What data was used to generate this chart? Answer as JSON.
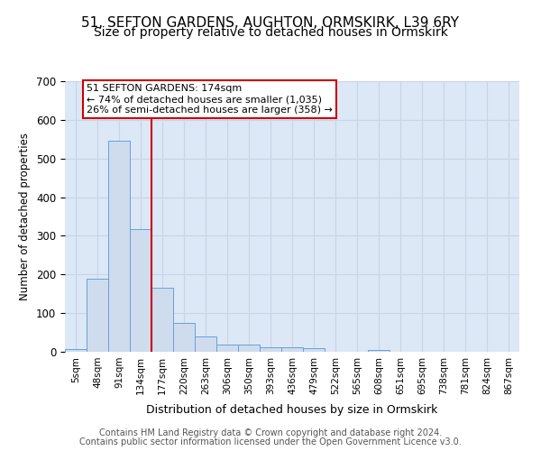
{
  "title1": "51, SEFTON GARDENS, AUGHTON, ORMSKIRK, L39 6RY",
  "title2": "Size of property relative to detached houses in Ormskirk",
  "xlabel": "Distribution of detached houses by size in Ormskirk",
  "ylabel": "Number of detached properties",
  "footer1": "Contains HM Land Registry data © Crown copyright and database right 2024.",
  "footer2": "Contains public sector information licensed under the Open Government Licence v3.0.",
  "categories": [
    "5sqm",
    "48sqm",
    "91sqm",
    "134sqm",
    "177sqm",
    "220sqm",
    "263sqm",
    "306sqm",
    "350sqm",
    "393sqm",
    "436sqm",
    "479sqm",
    "522sqm",
    "565sqm",
    "608sqm",
    "651sqm",
    "695sqm",
    "738sqm",
    "781sqm",
    "824sqm",
    "867sqm"
  ],
  "values": [
    8,
    188,
    545,
    318,
    165,
    75,
    40,
    18,
    18,
    11,
    11,
    10,
    0,
    0,
    5,
    0,
    0,
    0,
    0,
    0,
    0
  ],
  "bar_color": "#cfdcee",
  "bar_edge_color": "#6a9fd8",
  "vline_x_idx": 3.5,
  "vline_color": "#cc0000",
  "ylim": [
    0,
    700
  ],
  "yticks": [
    0,
    100,
    200,
    300,
    400,
    500,
    600,
    700
  ],
  "annotation_title": "51 SEFTON GARDENS: 174sqm",
  "annotation_line1": "← 74% of detached houses are smaller (1,035)",
  "annotation_line2": "26% of semi-detached houses are larger (358) →",
  "annotation_box_color": "#ffffff",
  "annotation_box_edge": "#cc0000",
  "grid_color": "#c8d4e8",
  "bg_color": "#dce8f5",
  "title_fontsize": 11,
  "subtitle_fontsize": 10,
  "footer_fontsize": 7
}
